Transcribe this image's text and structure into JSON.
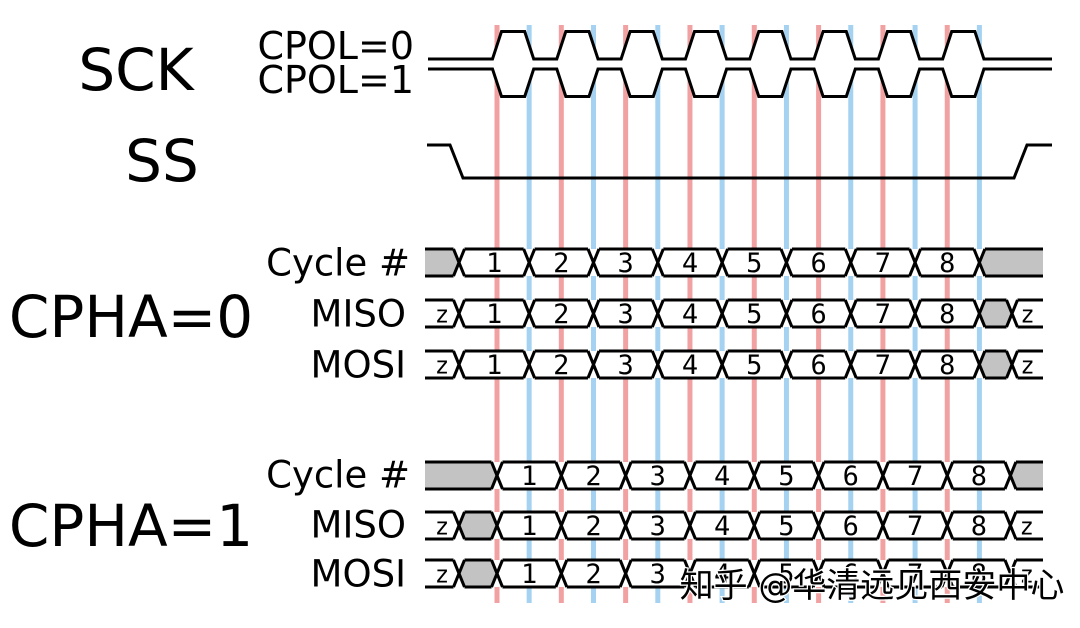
{
  "labels": {
    "sck": "SCK",
    "cpol0": "CPOL=0",
    "cpol1": "CPOL=1",
    "ss": "SS",
    "cpha0": "CPHA=0",
    "cpha1": "CPHA=1",
    "cycle": "Cycle #",
    "miso": "MISO",
    "mosi": "MOSI",
    "hiz": "z"
  },
  "cycle_numbers": [
    "1",
    "2",
    "3",
    "4",
    "5",
    "6",
    "7",
    "8"
  ],
  "num_cycles": 8,
  "watermark": "知乎 @华清远见西安中心",
  "colors": {
    "leading_edge": "#f1a1a1",
    "trailing_edge": "#a5d2f0",
    "signal_line": "#000000",
    "undefined_fill": "#c3c3c3",
    "watermark_text": "#9a9a9a",
    "background": "#ffffff"
  }
}
